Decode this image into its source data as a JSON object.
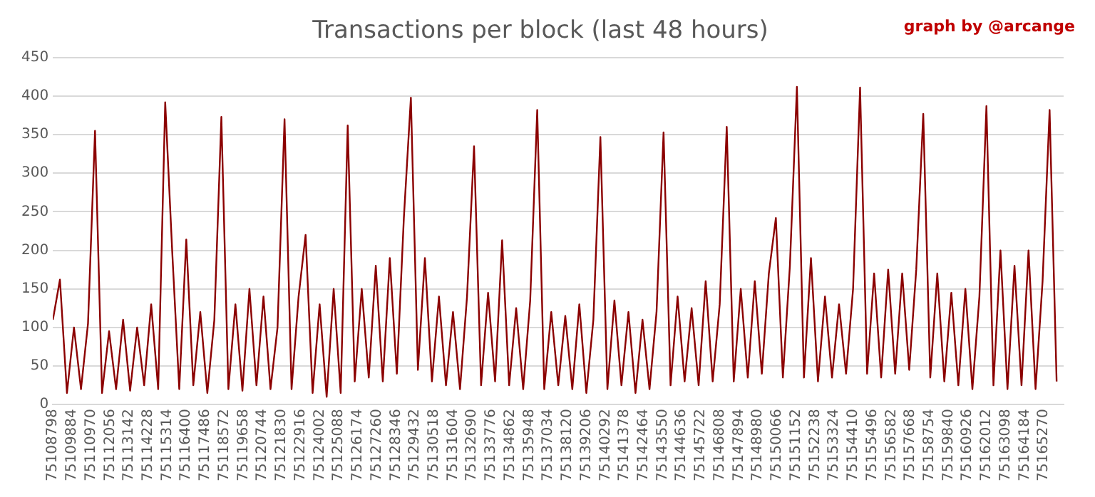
{
  "chart_data": {
    "type": "line",
    "title": "Transactions per block (last 48 hours)",
    "annotations": [
      "graph by @arcange"
    ],
    "series": [
      {
        "color": "#8b0000",
        "x": [
          75108800,
          75109200,
          75109600,
          75110000,
          75110400,
          75110800,
          75111200,
          75111600,
          75112000,
          75112400,
          75112800,
          75113200,
          75113600,
          75114000,
          75114400,
          75114800,
          75115200,
          75115600,
          75116000,
          75116400,
          75116800,
          75117200,
          75117600,
          75118000,
          75118400,
          75118800,
          75119200,
          75119600,
          75120000,
          75120400,
          75120800,
          75121200,
          75121600,
          75122000,
          75122400,
          75122800,
          75123200,
          75123600,
          75124000,
          75124400,
          75124800,
          75125200,
          75125600,
          75126000,
          75126400,
          75126800,
          75127200,
          75127600,
          75128000,
          75128400,
          75128800,
          75129200,
          75129600,
          75130000,
          75130400,
          75130800,
          75131200,
          75131600,
          75132000,
          75132400,
          75132800,
          75133200,
          75133600,
          75134000,
          75134400,
          75134800,
          75135200,
          75135600,
          75136000,
          75136400,
          75136800,
          75137200,
          75137600,
          75138000,
          75138400,
          75138800,
          75139200,
          75139600,
          75140000,
          75140400,
          75140800,
          75141200,
          75141600,
          75142000,
          75142400,
          75142800,
          75143200,
          75143600,
          75144000,
          75144400,
          75144800,
          75145200,
          75145600,
          75146000,
          75146400,
          75146800,
          75147200,
          75147600,
          75148000,
          75148400,
          75148800,
          75149200,
          75149600,
          75150000,
          75150400,
          75150800,
          75151200,
          75151600,
          75152000,
          75152400,
          75152800,
          75153200,
          75153600,
          75154000,
          75154400,
          75154800,
          75155200,
          75155600,
          75156000,
          75156400,
          75156800,
          75157200,
          75157600,
          75158000,
          75158400,
          75158800,
          75159200,
          75159600,
          75160000,
          75160400,
          75160800,
          75161200,
          75161600,
          75162000,
          75162400,
          75162800,
          75163200,
          75163600,
          75164000,
          75164400,
          75164800,
          75165200,
          75165600,
          75166000
        ],
        "values": [
          110,
          162,
          15,
          100,
          20,
          105,
          355,
          15,
          95,
          20,
          110,
          18,
          100,
          25,
          130,
          20,
          392,
          198,
          20,
          214,
          25,
          120,
          15,
          110,
          373,
          20,
          130,
          18,
          150,
          25,
          140,
          20,
          100,
          370,
          20,
          140,
          220,
          15,
          130,
          10,
          150,
          15,
          362,
          30,
          150,
          35,
          180,
          30,
          190,
          40,
          242,
          398,
          45,
          190,
          30,
          140,
          25,
          120,
          20,
          140,
          335,
          25,
          145,
          30,
          213,
          25,
          125,
          20,
          135,
          382,
          20,
          120,
          25,
          115,
          20,
          130,
          15,
          110,
          347,
          20,
          135,
          25,
          120,
          15,
          110,
          20,
          120,
          353,
          25,
          140,
          30,
          125,
          25,
          160,
          30,
          130,
          360,
          30,
          150,
          35,
          160,
          40,
          170,
          242,
          35,
          180,
          412,
          35,
          190,
          30,
          140,
          35,
          130,
          40,
          150,
          411,
          40,
          170,
          35,
          175,
          40,
          170,
          45,
          175,
          377,
          35,
          170,
          30,
          145,
          25,
          150,
          20,
          140,
          387,
          25,
          200,
          20,
          180,
          25,
          200,
          20,
          160,
          382,
          30
        ]
      }
    ],
    "xlim": [
      75108798,
      75166400
    ],
    "xticks": [
      75108798,
      75109884,
      75110970,
      75112056,
      75113142,
      75114228,
      75115314,
      75116400,
      75117486,
      75118572,
      75119658,
      75120744,
      75121830,
      75122916,
      75124002,
      75125088,
      75126174,
      75127260,
      75128346,
      75129432,
      75130518,
      75131604,
      75132690,
      75133776,
      75134862,
      75135948,
      75137034,
      75138120,
      75139206,
      75140292,
      75141378,
      75142464,
      75143550,
      75144636,
      75145722,
      75146808,
      75147894,
      75148980,
      75150066,
      75151152,
      75152238,
      75153324,
      75154410,
      75155496,
      75156582,
      75157668,
      75158754,
      75159840,
      75160926,
      75162012,
      75163098,
      75164184,
      75165270
    ],
    "ylim": [
      0,
      450
    ],
    "yticks": [
      0,
      50,
      100,
      150,
      200,
      250,
      300,
      350,
      400,
      450
    ],
    "grid": "y"
  }
}
